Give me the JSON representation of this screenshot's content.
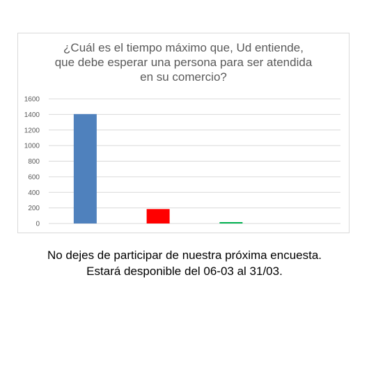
{
  "chart_data": {
    "type": "bar",
    "title": "¿Cuál es el tiempo máximo que, Ud entiende,\nque debe esperar una persona para ser atendida\nen su comercio?",
    "categories": [
      "",
      "",
      "",
      ""
    ],
    "values": [
      1405,
      185,
      15,
      0
    ],
    "colors": [
      "#4f81bd",
      "#ff0000",
      "#00b050",
      "#7f7f7f"
    ],
    "yticks": [
      "0",
      "200",
      "400",
      "600",
      "800",
      "1000",
      "1200",
      "1400",
      "1600"
    ],
    "ylim": [
      0,
      1600
    ],
    "grid": true,
    "legend": "none",
    "xlabel": "",
    "ylabel": ""
  },
  "footer": {
    "line1": "No dejes de participar de nuestra próxima encuesta.",
    "line2": "Estará desponible del 06-03 al 31/03."
  }
}
